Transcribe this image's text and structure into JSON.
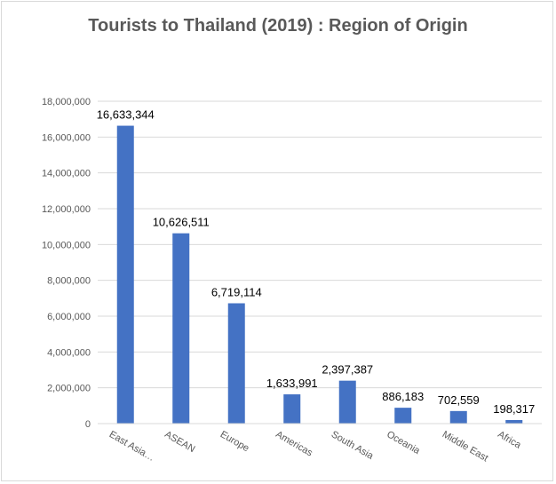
{
  "chart_data": {
    "type": "bar",
    "title": "Tourists to Thailand (2019) : Region of Origin",
    "categories": [
      "East Asia…",
      "ASEAN",
      "Europe",
      "Americas",
      "South Asia",
      "Oceania",
      "Middle East",
      "Africa"
    ],
    "values": [
      16633344,
      10626511,
      6719114,
      1633991,
      2397387,
      886183,
      702559,
      198317
    ],
    "data_labels": [
      "16,633,344",
      "10,626,511",
      "6,719,114",
      "1,633,991",
      "2,397,387",
      "886,183",
      "702,559",
      "198,317"
    ],
    "y_ticks": [
      "0",
      "2,000,000",
      "4,000,000",
      "6,000,000",
      "8,000,000",
      "10,000,000",
      "12,000,000",
      "14,000,000",
      "16,000,000",
      "18,000,000"
    ],
    "ylim": [
      0,
      18000000
    ],
    "grid": true,
    "legend": "none",
    "bar_color": "#4472c4",
    "grid_color": "#d9d9d9"
  }
}
